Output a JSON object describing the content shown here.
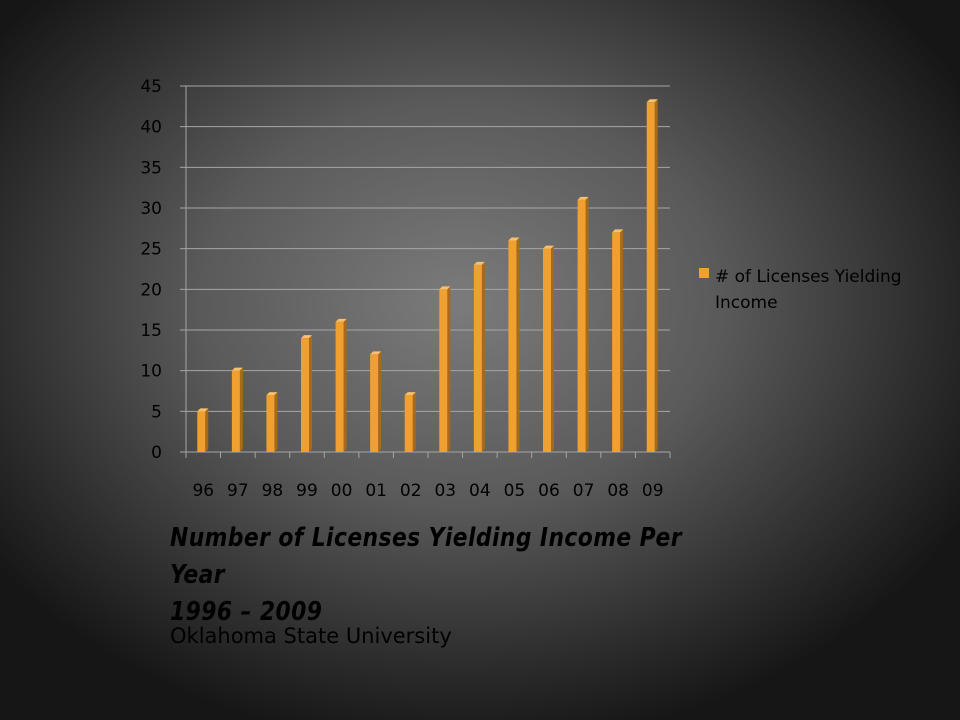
{
  "slide": {
    "title_line1": "Number of Licenses Yielding Income Per Year",
    "title_line2": "1996 – 2009",
    "subtitle": "Oklahoma State University"
  },
  "chart_data": {
    "type": "bar",
    "categories": [
      "96",
      "97",
      "98",
      "99",
      "00",
      "01",
      "02",
      "03",
      "04",
      "05",
      "06",
      "07",
      "08",
      "09"
    ],
    "series": [
      {
        "name": "# of Licenses Yielding Income",
        "values": [
          5,
          10,
          7,
          14,
          16,
          12,
          7,
          20,
          23,
          26,
          25,
          31,
          27,
          43
        ]
      }
    ],
    "yticks": [
      0,
      5,
      10,
      15,
      20,
      25,
      30,
      35,
      40,
      45
    ],
    "ylim": [
      0,
      45
    ],
    "grid": true,
    "legend_position": "right",
    "legend_lines": [
      "# of Licenses Yielding",
      "Income"
    ],
    "bar_color": "#f0a030"
  }
}
